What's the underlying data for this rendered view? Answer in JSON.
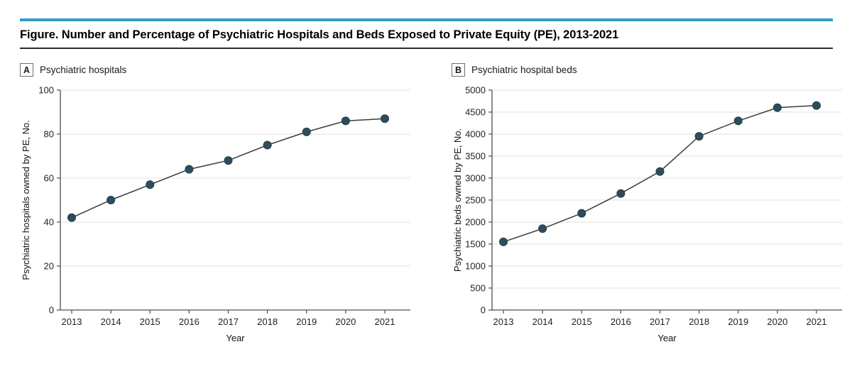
{
  "header": {
    "title": "Figure. Number and Percentage of Psychiatric Hospitals and Beds Exposed to Private Equity (PE), 2013-2021"
  },
  "colors": {
    "accent_bar": "#2E9EC7",
    "marker": "#2E4D5C",
    "marker_edge": "#223D4B",
    "line": "#3A3A3A",
    "grid": "#E8E8E8",
    "axis": "#4D4D4D"
  },
  "chart_data": [
    {
      "type": "line",
      "panel_label": "A",
      "panel_title": "Psychiatric hospitals",
      "x": [
        "2013",
        "2014",
        "2015",
        "2016",
        "2017",
        "2018",
        "2019",
        "2020",
        "2021"
      ],
      "values": [
        42,
        50,
        57,
        64,
        68,
        75,
        81,
        86,
        87
      ],
      "xlabel": "Year",
      "ylabel": "Psychiatric hospitals owned by PE, No.",
      "ylim": [
        0,
        100
      ],
      "yticks": [
        0,
        20,
        40,
        60,
        80,
        100
      ],
      "grid": "horizontal",
      "legend": "none"
    },
    {
      "type": "line",
      "panel_label": "B",
      "panel_title": "Psychiatric hospital beds",
      "x": [
        "2013",
        "2014",
        "2015",
        "2016",
        "2017",
        "2018",
        "2019",
        "2020",
        "2021"
      ],
      "values": [
        1550,
        1850,
        2200,
        2650,
        3150,
        3950,
        4300,
        4600,
        4650
      ],
      "xlabel": "Year",
      "ylabel": "Psychiatric beds owned by PE, No.",
      "ylim": [
        0,
        5000
      ],
      "yticks": [
        0,
        500,
        1000,
        1500,
        2000,
        2500,
        3000,
        3500,
        4000,
        4500,
        5000
      ],
      "grid": "horizontal",
      "legend": "none"
    }
  ]
}
